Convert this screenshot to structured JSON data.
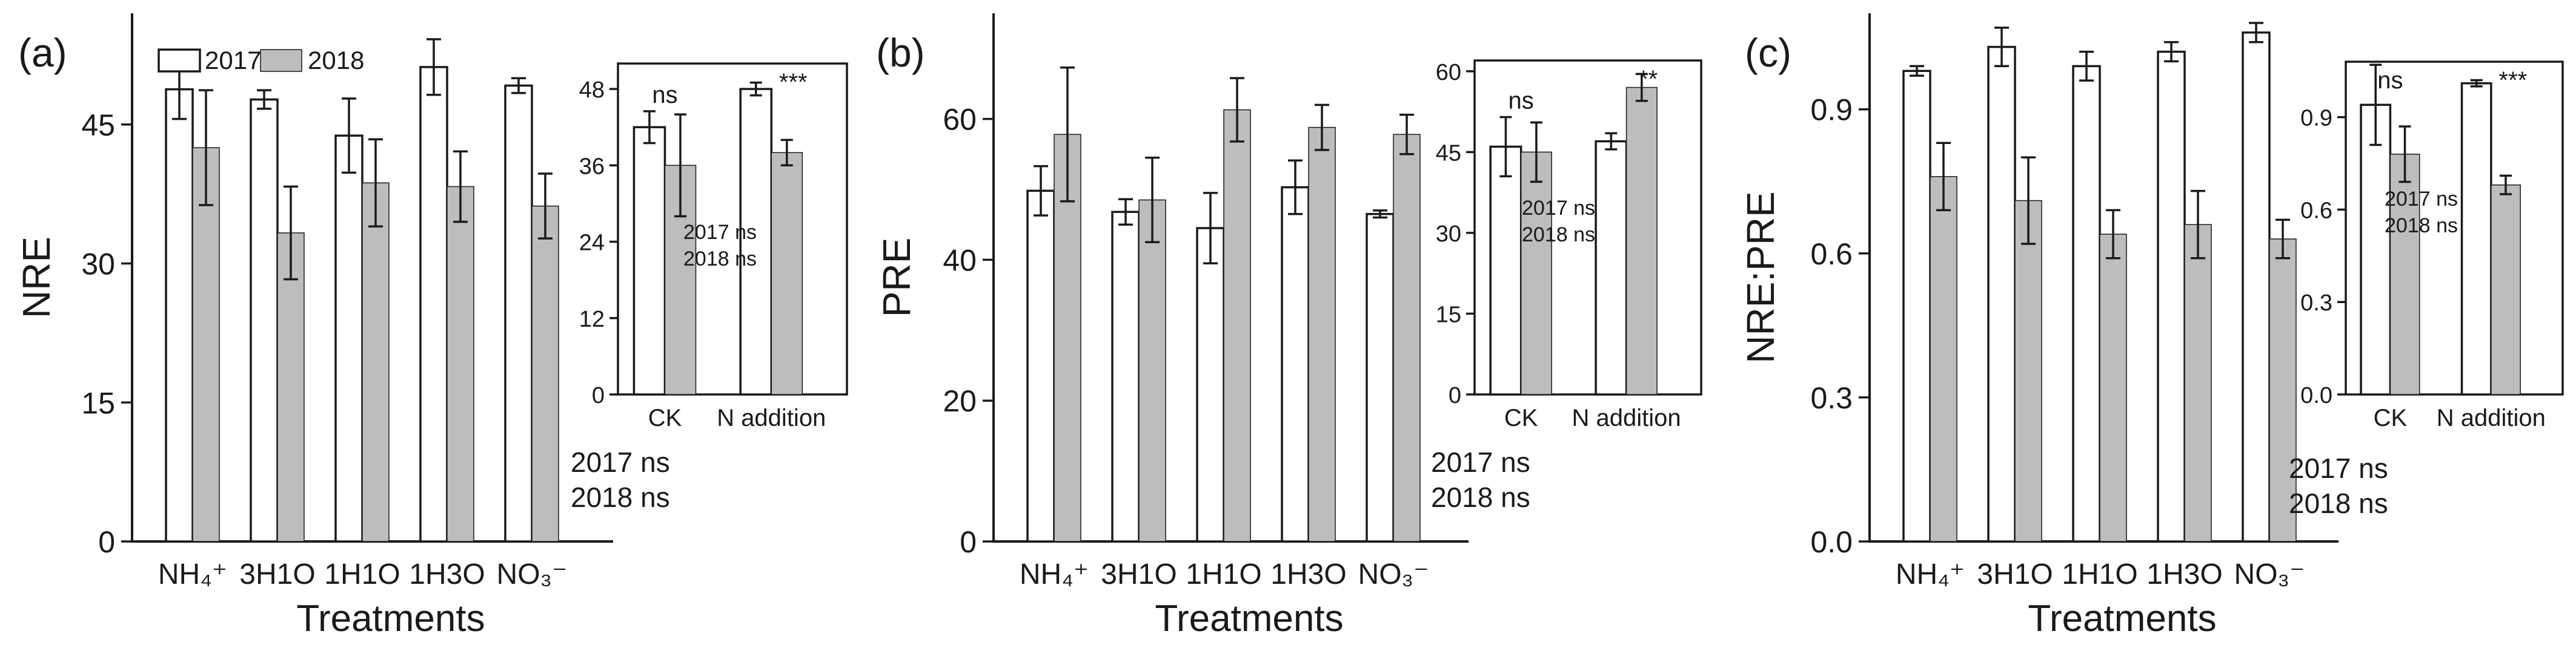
{
  "chart_data": [
    {
      "type": "bar",
      "panel": "(a)",
      "ylabel": "NRE",
      "xlabel": "Treatments",
      "categories": [
        "NH₄⁺",
        "3H1O",
        "1H1O",
        "1H3O",
        "NO₃⁻"
      ],
      "ylim": [
        0,
        57
      ],
      "yticks": [
        0,
        15,
        30,
        45
      ],
      "legend": {
        "position": "top-left",
        "entries": [
          "2017",
          "2018"
        ]
      },
      "series": [
        {
          "name": "2017",
          "values": [
            48.8,
            47.7,
            43.8,
            51.2,
            49.2
          ],
          "errors": [
            3.2,
            1.0,
            4.0,
            3.0,
            0.8
          ]
        },
        {
          "name": "2018",
          "values": [
            42.5,
            33.3,
            38.7,
            38.3,
            36.2
          ],
          "errors": [
            6.2,
            5.0,
            4.7,
            3.8,
            3.5
          ]
        }
      ],
      "annotation": [
        "2017 ns",
        "2018 ns"
      ],
      "inset": {
        "categories": [
          "CK",
          "N addition"
        ],
        "ylim": [
          0,
          52
        ],
        "yticks": [
          0,
          12,
          24,
          36,
          48
        ],
        "series": [
          {
            "name": "2017",
            "values": [
              42,
              48
            ],
            "errors": [
              2.5,
              1.0
            ]
          },
          {
            "name": "2018",
            "values": [
              36,
              38
            ],
            "errors": [
              8.0,
              2.0
            ]
          }
        ],
        "labels": [
          "ns",
          "***"
        ],
        "annotation": [
          "2017 ns",
          "2018 ns"
        ]
      }
    },
    {
      "type": "bar",
      "panel": "(b)",
      "ylabel": "PRE",
      "xlabel": "Treatments",
      "categories": [
        "NH₄⁺",
        "3H1O",
        "1H1O",
        "1H3O",
        "NO₃⁻"
      ],
      "ylim": [
        0,
        75
      ],
      "yticks": [
        0,
        20,
        40,
        60
      ],
      "series": [
        {
          "name": "2017",
          "values": [
            49.8,
            46.8,
            44.5,
            50.3,
            46.5
          ],
          "errors": [
            3.5,
            1.8,
            5.0,
            3.8,
            0.5
          ]
        },
        {
          "name": "2018",
          "values": [
            57.8,
            48.5,
            61.3,
            58.8,
            57.8
          ],
          "errors": [
            9.5,
            6.0,
            4.5,
            3.2,
            2.8
          ]
        }
      ],
      "annotation": [
        "2017 ns",
        "2018 ns"
      ],
      "inset": {
        "categories": [
          "CK",
          "N addition"
        ],
        "ylim": [
          0,
          62
        ],
        "yticks": [
          0,
          15,
          30,
          45,
          60
        ],
        "series": [
          {
            "name": "2017",
            "values": [
              46,
              47
            ],
            "errors": [
              5.5,
              1.5
            ]
          },
          {
            "name": "2018",
            "values": [
              45,
              57
            ],
            "errors": [
              5.5,
              2.5
            ]
          }
        ],
        "labels": [
          "ns",
          "**"
        ],
        "annotation": [
          "2017 ns",
          "2018 ns"
        ]
      }
    },
    {
      "type": "bar",
      "panel": "(c)",
      "ylabel": "NRE:PRE",
      "xlabel": "Treatments",
      "categories": [
        "NH₄⁺",
        "3H1O",
        "1H1O",
        "1H3O",
        "NO₃⁻"
      ],
      "ylim": [
        0,
        1.1
      ],
      "yticks": [
        0.0,
        0.3,
        0.6,
        0.9
      ],
      "ytick_labels": [
        "0.0",
        "0.3",
        "0.6",
        "0.9"
      ],
      "series": [
        {
          "name": "2017",
          "values": [
            0.98,
            1.03,
            0.99,
            1.02,
            1.06
          ],
          "errors": [
            0.01,
            0.04,
            0.03,
            0.02,
            0.02
          ]
        },
        {
          "name": "2018",
          "values": [
            0.76,
            0.71,
            0.64,
            0.66,
            0.63
          ],
          "errors": [
            0.07,
            0.09,
            0.05,
            0.07,
            0.04
          ]
        }
      ],
      "annotation": [
        "2017 ns",
        "2018 ns"
      ],
      "inset": {
        "categories": [
          "CK",
          "N addition"
        ],
        "ylim": [
          0,
          1.08
        ],
        "yticks": [
          0.0,
          0.3,
          0.6,
          0.9
        ],
        "ytick_labels": [
          "0.0",
          "0.3",
          "0.6",
          "0.9"
        ],
        "series": [
          {
            "name": "2017",
            "values": [
              0.94,
              1.01
            ],
            "errors": [
              0.13,
              0.01
            ]
          },
          {
            "name": "2018",
            "values": [
              0.78,
              0.68
            ],
            "errors": [
              0.09,
              0.03
            ]
          }
        ],
        "labels": [
          "ns",
          "***"
        ],
        "annotation": [
          "2017 ns",
          "2018 ns"
        ]
      }
    }
  ]
}
